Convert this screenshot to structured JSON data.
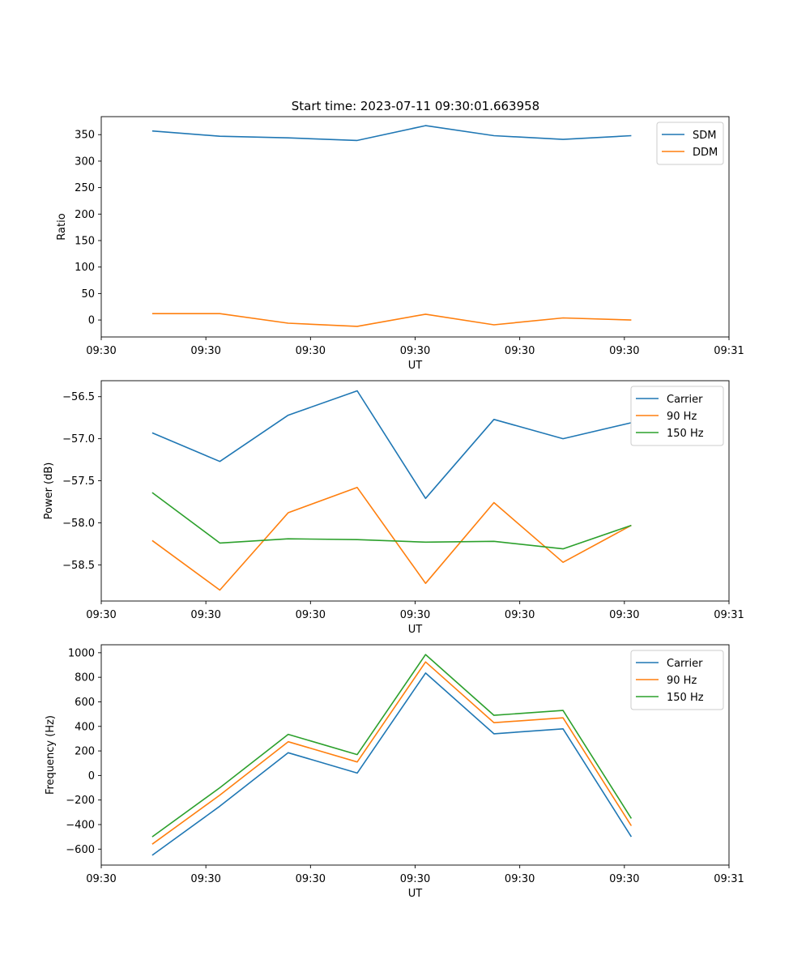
{
  "figure": {
    "title": "Start time: 2023-07-11 09:30:01.663958"
  },
  "chart_data": [
    {
      "type": "line",
      "xlabel": "UT",
      "ylabel": "Ratio",
      "xlim": [
        0,
        9
      ],
      "ylim": [
        -32,
        384
      ],
      "x_ticks": [
        0,
        1.5,
        3,
        4.5,
        6,
        7.5,
        9
      ],
      "x_tick_labels": [
        "09:30",
        "09:30",
        "09:30",
        "09:30",
        "09:30",
        "09:30",
        "09:31"
      ],
      "y_ticks": [
        0,
        50,
        100,
        150,
        200,
        250,
        300,
        350
      ],
      "y_tick_labels": [
        "0",
        "50",
        "100",
        "150",
        "200",
        "250",
        "300",
        "350"
      ],
      "x": [
        0.73,
        1.7,
        2.68,
        3.67,
        4.65,
        5.63,
        6.62,
        7.6
      ],
      "series": [
        {
          "name": "SDM",
          "color": "#1f77b4",
          "values": [
            357,
            347,
            344,
            339,
            367,
            348,
            341,
            348
          ]
        },
        {
          "name": "DDM",
          "color": "#ff7f0e",
          "values": [
            12,
            12,
            -6,
            -12,
            11,
            -9,
            4,
            0
          ]
        }
      ],
      "legend": "top-right"
    },
    {
      "type": "line",
      "xlabel": "UT",
      "ylabel": "Power (dB)",
      "xlim": [
        0,
        9
      ],
      "ylim": [
        -58.93,
        -56.31
      ],
      "x_ticks": [
        0,
        1.5,
        3,
        4.5,
        6,
        7.5,
        9
      ],
      "x_tick_labels": [
        "09:30",
        "09:30",
        "09:30",
        "09:30",
        "09:30",
        "09:30",
        "09:31"
      ],
      "y_ticks": [
        -58.5,
        -58.0,
        -57.5,
        -57.0,
        -56.5
      ],
      "y_tick_labels": [
        "−58.5",
        "−58.0",
        "−57.5",
        "−57.0",
        "−56.5"
      ],
      "x": [
        0.73,
        1.7,
        2.68,
        3.67,
        4.65,
        5.63,
        6.62,
        7.6
      ],
      "series": [
        {
          "name": "Carrier",
          "color": "#1f77b4",
          "values": [
            -56.93,
            -57.27,
            -56.72,
            -56.43,
            -57.71,
            -56.77,
            -57.0,
            -56.81
          ]
        },
        {
          "name": "90 Hz",
          "color": "#ff7f0e",
          "values": [
            -58.21,
            -58.8,
            -57.88,
            -57.58,
            -58.72,
            -57.76,
            -58.47,
            -58.03
          ]
        },
        {
          "name": "150 Hz",
          "color": "#2ca02c",
          "values": [
            -57.64,
            -58.24,
            -58.19,
            -58.2,
            -58.23,
            -58.22,
            -58.31,
            -58.03
          ]
        }
      ],
      "legend": "top-right"
    },
    {
      "type": "line",
      "xlabel": "UT",
      "ylabel": "Frequency (Hz)",
      "xlim": [
        0,
        9
      ],
      "ylim": [
        -730,
        1065
      ],
      "x_ticks": [
        0,
        1.5,
        3,
        4.5,
        6,
        7.5,
        9
      ],
      "x_tick_labels": [
        "09:30",
        "09:30",
        "09:30",
        "09:30",
        "09:30",
        "09:30",
        "09:31"
      ],
      "y_ticks": [
        -600,
        -400,
        -200,
        0,
        200,
        400,
        600,
        800,
        1000
      ],
      "y_tick_labels": [
        "−600",
        "−400",
        "−200",
        "0",
        "200",
        "400",
        "600",
        "800",
        "1000"
      ],
      "x": [
        0.73,
        1.7,
        2.68,
        3.67,
        4.65,
        5.63,
        6.62,
        7.6
      ],
      "series": [
        {
          "name": "Carrier",
          "color": "#1f77b4",
          "values": [
            -650,
            -250,
            185,
            20,
            835,
            340,
            380,
            -500
          ]
        },
        {
          "name": "90 Hz",
          "color": "#ff7f0e",
          "values": [
            -560,
            -160,
            275,
            110,
            925,
            430,
            470,
            -410
          ]
        },
        {
          "name": "150 Hz",
          "color": "#2ca02c",
          "values": [
            -500,
            -100,
            335,
            170,
            985,
            490,
            530,
            -350
          ]
        }
      ],
      "legend": "top-right"
    }
  ]
}
